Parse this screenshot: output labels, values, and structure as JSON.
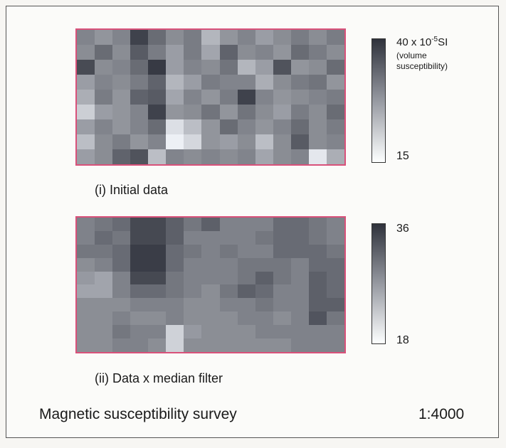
{
  "figure": {
    "panel_i": {
      "caption": "(i)  Initial data",
      "colorbar": {
        "max_label_prefix": "40 x 10",
        "max_label_exp": "-5",
        "max_label_suffix": "SI",
        "description_line1": "(volume",
        "description_line2": "susceptibility)",
        "min_label": "15",
        "max_value": 40,
        "min_value": 15
      },
      "grid": [
        [
          30,
          28,
          30,
          38,
          33,
          29,
          31,
          24,
          28,
          30,
          27,
          29,
          31,
          29,
          31
        ],
        [
          29,
          33,
          29,
          35,
          31,
          27,
          31,
          26,
          34,
          29,
          30,
          28,
          33,
          31,
          29
        ],
        [
          37,
          29,
          30,
          33,
          39,
          27,
          30,
          29,
          32,
          24,
          27,
          36,
          28,
          29,
          33
        ],
        [
          27,
          30,
          29,
          31,
          34,
          24,
          27,
          31,
          30,
          30,
          25,
          29,
          31,
          32,
          28
        ],
        [
          25,
          31,
          28,
          34,
          35,
          26,
          30,
          28,
          31,
          38,
          30,
          28,
          29,
          30,
          31
        ],
        [
          21,
          27,
          28,
          30,
          38,
          28,
          29,
          32,
          28,
          32,
          29,
          27,
          31,
          29,
          33
        ],
        [
          27,
          30,
          28,
          30,
          33,
          19,
          23,
          28,
          33,
          30,
          28,
          30,
          33,
          29,
          31
        ],
        [
          23,
          29,
          31,
          28,
          30,
          17,
          20,
          28,
          27,
          29,
          23,
          29,
          35,
          29,
          30
        ],
        [
          27,
          29,
          34,
          36,
          23,
          30,
          29,
          30,
          29,
          30,
          26,
          29,
          30,
          18,
          25
        ]
      ]
    },
    "panel_ii": {
      "caption": "(ii)  Data x median filter",
      "colorbar": {
        "max_label": "36",
        "min_label": "18",
        "max_value": 36,
        "min_value": 18
      },
      "grid": [
        [
          29,
          30,
          31,
          34,
          34,
          32,
          30,
          32,
          29,
          29,
          29,
          31,
          31,
          30,
          29
        ],
        [
          29,
          31,
          30,
          34,
          34,
          32,
          29,
          29,
          29,
          29,
          30,
          31,
          31,
          30,
          29
        ],
        [
          30,
          30,
          31,
          35,
          35,
          31,
          30,
          29,
          30,
          29,
          29,
          31,
          31,
          31,
          30
        ],
        [
          28,
          29,
          31,
          35,
          35,
          31,
          29,
          29,
          29,
          30,
          30,
          30,
          29,
          31,
          31
        ],
        [
          27,
          26,
          29,
          34,
          34,
          30,
          29,
          29,
          29,
          30,
          32,
          30,
          29,
          32,
          31
        ],
        [
          26,
          26,
          29,
          31,
          31,
          30,
          29,
          28,
          30,
          32,
          31,
          29,
          29,
          32,
          31
        ],
        [
          28,
          28,
          28,
          29,
          29,
          29,
          28,
          28,
          29,
          29,
          30,
          29,
          29,
          32,
          32
        ],
        [
          28,
          28,
          29,
          28,
          28,
          29,
          28,
          28,
          28,
          29,
          29,
          28,
          29,
          33,
          30
        ],
        [
          28,
          28,
          30,
          29,
          29,
          22,
          27,
          28,
          28,
          28,
          29,
          29,
          29,
          29,
          29
        ],
        [
          28,
          28,
          29,
          29,
          28,
          22,
          28,
          28,
          28,
          28,
          28,
          28,
          29,
          29,
          29
        ]
      ]
    },
    "footer": {
      "title": "Magnetic susceptibility survey",
      "scale": "1:4000"
    }
  },
  "colors": {
    "panel_border": "#d9517a",
    "ramp_low": "#fdfdfd",
    "ramp_high": "#2f2f34"
  }
}
